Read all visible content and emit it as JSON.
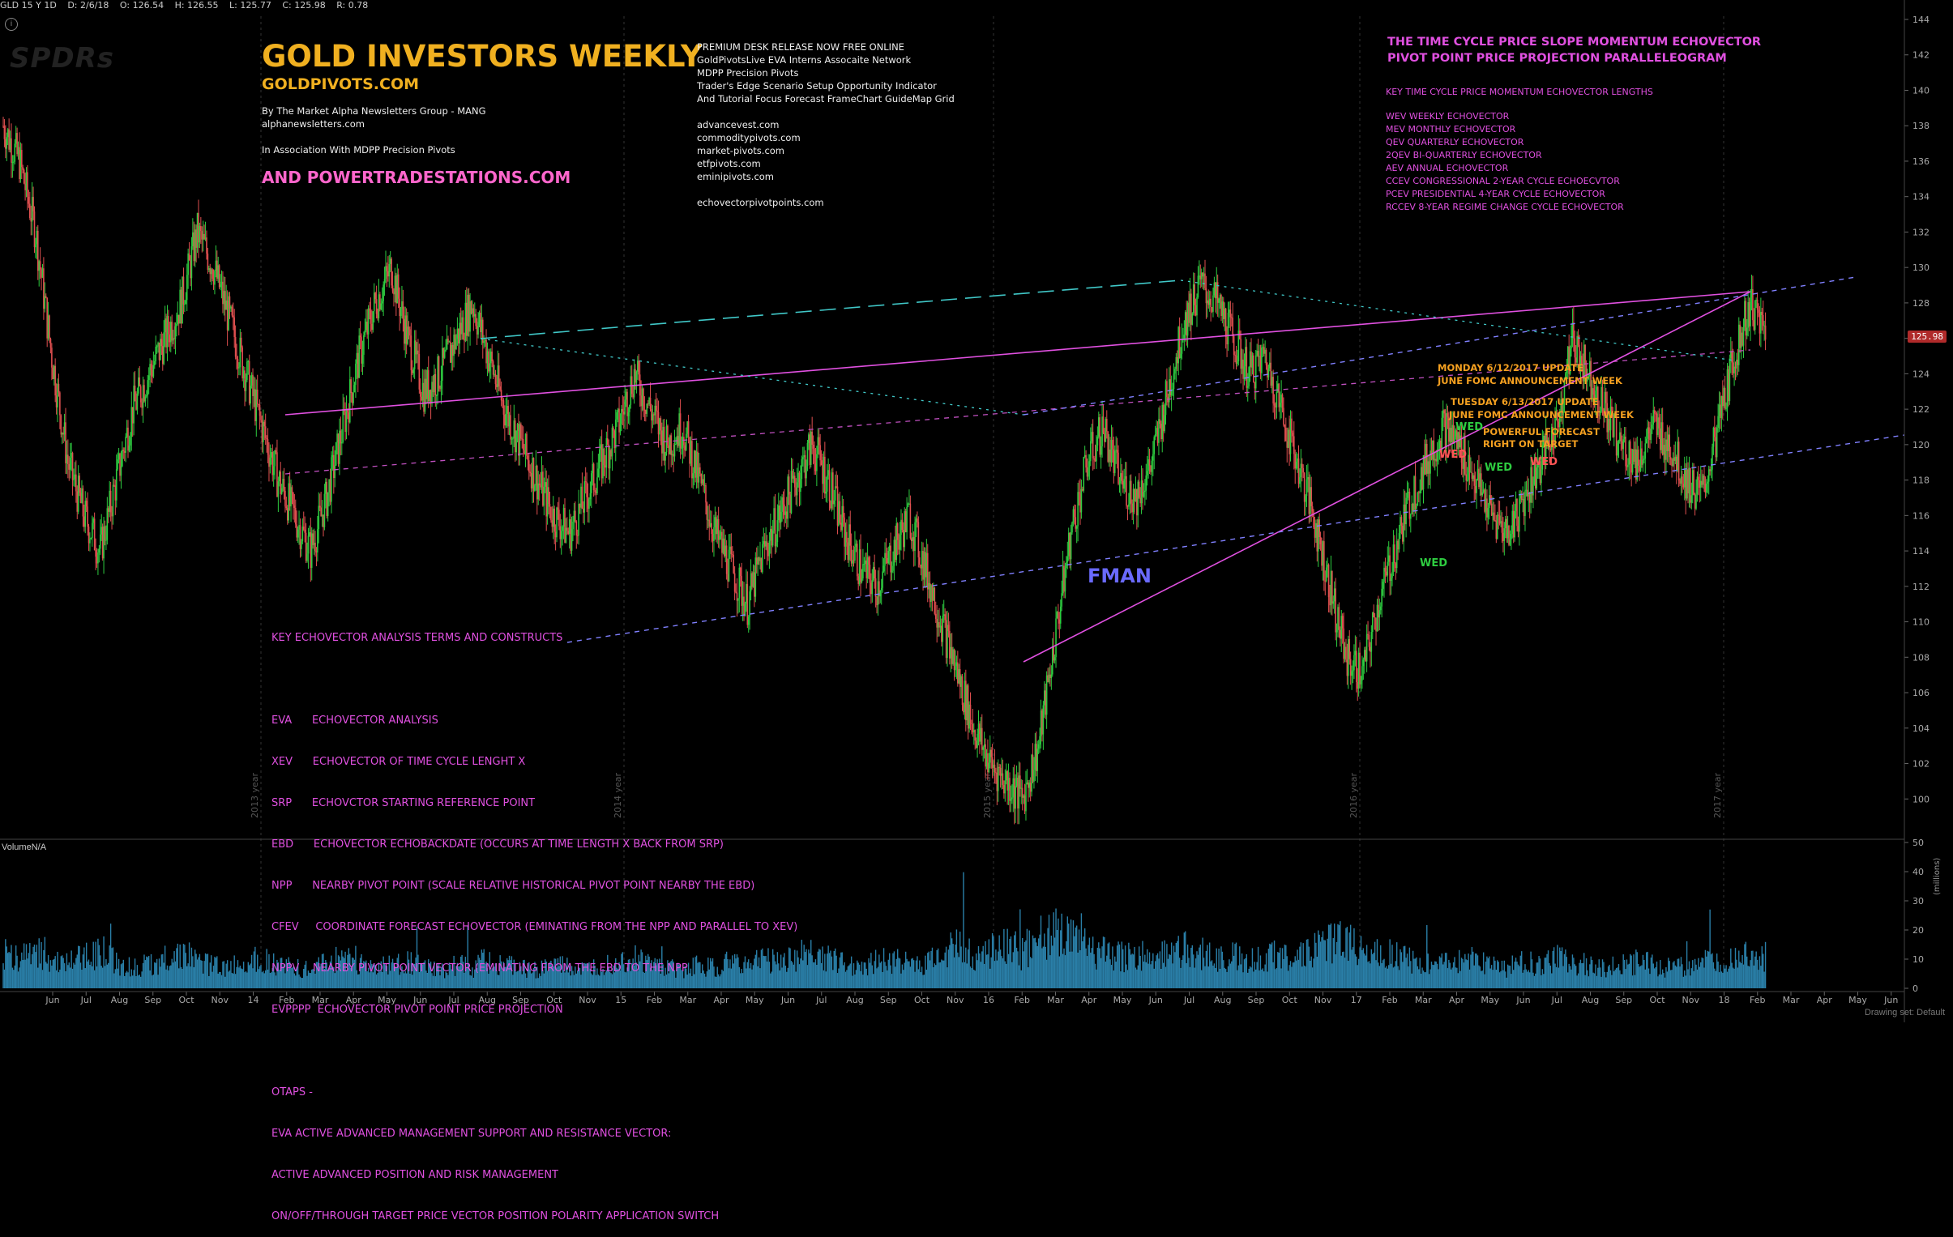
{
  "header": {
    "symbol": "GLD 15 Y 1D",
    "date": "D: 2/6/18",
    "open": "O: 126.54",
    "high": "H: 126.55",
    "low": "L: 125.77",
    "close": "C: 125.98",
    "range": "R: 0.78"
  },
  "logo_text": "SPDRs",
  "last_price": "125.98",
  "volume_label": "VolumeN/A",
  "volume_unit": "(millions)",
  "drawing_set": "Drawing set: Default",
  "title_block": {
    "title": "GOLD INVESTORS WEEKLY",
    "site": "GOLDPIVOTS.COM",
    "line1": "By The Market Alpha Newsletters Group - MANG",
    "line2": "alphanewsletters.com",
    "line3": "In Association With MDPP Precision Pivots",
    "power": "AND POWERTRADESTATIONS.COM"
  },
  "premium_block": [
    "PREMIUM DESK RELEASE NOW FREE ONLINE",
    "GoldPivotsLive EVA Interns Assocaite Network",
    "MDPP Precision Pivots",
    "Trader's Edge Scenario Setup Opportunity Indicator",
    "And Tutorial Focus Forecast FrameChart  GuideMap Grid",
    "",
    "advancevest.com",
    "commoditypivots.com",
    "market-pivots.com",
    "etfpivots.com",
    "eminipivots.com",
    "",
    "echovectorpivotpoints.com"
  ],
  "right_block": {
    "title1": "THE TIME CYCLE PRICE SLOPE MOMENTUM ECHOVECTOR",
    "title2": "PIVOT POINT PRICE PROJECTION PARALLELEOGRAM",
    "subtitle": "KEY TIME CYCLE PRICE MOMENTUM ECHOVECTOR LENGTHS",
    "items": [
      "WEV WEEKLY ECHOVECTOR",
      "MEV MONTHLY ECHOVECTOR",
      "QEV QUARTERLY ECHOVECTOR",
      "2QEV BI-QUARTERLY ECHOVECTOR",
      "AEV ANNUAL ECHOVECTOR",
      "CCEV CONGRESSIONAL 2-YEAR CYCLE ECHOECVTOR",
      "PCEV PRESIDENTIAL 4-YEAR CYCLE ECHOVECTOR",
      "RCCEV 8-YEAR REGIME CHANGE CYCLE ECHOVECTOR"
    ]
  },
  "terms_block": [
    "KEY ECHOVECTOR ANALYSIS TERMS AND CONSTRUCTS",
    "",
    "EVA      ECHOVECTOR ANALYSIS",
    "XEV      ECHOVECTOR OF TIME CYCLE LENGHT X",
    "SRP      ECHOVCTOR STARTING REFERENCE POINT",
    "EBD      ECHOVECTOR ECHOBACKDATE (OCCURS AT TIME LENGTH X BACK FROM SRP)",
    "NPP      NEARBY PIVOT POINT (SCALE RELATIVE HISTORICAL PIVOT POINT NEARBY THE EBD)",
    "CFEV     COORDINATE FORECAST ECHOVECTOR (EMINATING FROM THE NPP AND PARALLEL TO XEV)",
    "NPPV    NEARBY PIVOT POINT VECTOR (EMINATING FROM THE EBD TO THE NPP",
    "EVPPPP  ECHOVECTOR PIVOT POINT PRICE PROJECTION",
    "",
    "OTAPS -",
    "EVA ACTIVE ADVANCED MANAGEMENT SUPPORT AND RESISTANCE VECTOR:",
    "ACTIVE ADVANCED POSITION AND RISK MANAGEMENT",
    "ON/OFF/THROUGH TARGET PRICE VECTOR POSITION POLARITY APPLICATION SWITCH"
  ],
  "annotations": {
    "monday": "MONDAY 6/12/2017 UPDATE",
    "monday_fomc": "JUNE FOMC ANNOUNCEMENT WEEK",
    "tuesday": "TUESDAY 6/13/2017 UPDATE",
    "tuesday_fomc": "JUNE FOMC ANNOUNCEMENT WEEK",
    "powerful1": "POWERFUL FORECAST",
    "powerful2": "RIGHT ON TARGET",
    "wed": "WED",
    "fman": "FMAN"
  },
  "year_markers": [
    "2013 year",
    "2014 year",
    "2015 year",
    "2016 year",
    "2017 year"
  ],
  "colors": {
    "up": "#2ecc40",
    "down": "#e05050",
    "volume": "#2a7fa8",
    "magenta": "#e050e0",
    "cyan": "#40c8c8",
    "blue": "#6a6aff"
  },
  "chart_data": {
    "type": "line",
    "title": "GLD 15 Y 1D",
    "ylim": [
      98,
      144
    ],
    "y_ticks": [
      100,
      102,
      104,
      106,
      108,
      110,
      112,
      114,
      116,
      118,
      120,
      122,
      124,
      126,
      128,
      130,
      132,
      134,
      136,
      138,
      140,
      142,
      144
    ],
    "x_ticks": [
      "Jun",
      "Jul",
      "Aug",
      "Sep",
      "Oct",
      "Nov",
      "14",
      "Feb",
      "Mar",
      "Apr",
      "May",
      "Jun",
      "Jul",
      "Aug",
      "Sep",
      "Oct",
      "Nov",
      "15",
      "Feb",
      "Mar",
      "Apr",
      "May",
      "Jun",
      "Jul",
      "Aug",
      "Sep",
      "Oct",
      "Nov",
      "16",
      "Feb",
      "Mar",
      "Apr",
      "May",
      "Jun",
      "Jul",
      "Aug",
      "Sep",
      "Oct",
      "Nov",
      "17",
      "Feb",
      "Mar",
      "Apr",
      "May",
      "Jun",
      "Jul",
      "Aug",
      "Sep",
      "Oct",
      "Nov",
      "18",
      "Feb",
      "Mar",
      "Apr",
      "May",
      "Jun"
    ],
    "series": [
      {
        "name": "GLD",
        "values": [
          138,
          136,
          132,
          125,
          119,
          116,
          114,
          118,
          122,
          124,
          126,
          128,
          132,
          130,
          127,
          124,
          121,
          118,
          116,
          114,
          117,
          121,
          125,
          128,
          130,
          126,
          123,
          124,
          126,
          128,
          125,
          122,
          120,
          118,
          116,
          115,
          117,
          119,
          121,
          124,
          122,
          120,
          121,
          118,
          115,
          113,
          111,
          114,
          116,
          118,
          120,
          118,
          115,
          113,
          112,
          114,
          116,
          113,
          110,
          107,
          104,
          102,
          101,
          100,
          103,
          109,
          115,
          119,
          121,
          118,
          117,
          119,
          123,
          127,
          129,
          128,
          126,
          124,
          125,
          122,
          119,
          116,
          112,
          108,
          107,
          111,
          114,
          117,
          119,
          121,
          120,
          118,
          116,
          115,
          117,
          119,
          121,
          126,
          124,
          122,
          120,
          119,
          121,
          120,
          118,
          117,
          121,
          125,
          128,
          126
        ]
      }
    ],
    "volume_ylim": [
      0,
      50
    ],
    "volume_ticks": [
      0,
      10,
      20,
      30,
      40,
      50
    ],
    "volume": [
      12,
      10,
      14,
      9,
      8,
      11,
      13,
      9,
      7,
      8,
      10,
      12,
      9,
      8,
      7,
      9,
      10,
      8,
      7,
      6,
      9,
      11,
      8,
      7,
      8,
      9,
      7,
      6,
      8,
      7,
      9,
      8,
      7,
      6,
      8,
      7,
      6,
      8,
      9,
      10,
      8,
      7,
      6,
      8,
      7,
      9,
      8,
      10,
      9,
      11,
      12,
      10,
      9,
      8,
      9,
      10,
      8,
      9,
      12,
      14,
      11,
      13,
      15,
      12,
      18,
      20,
      16,
      14,
      12,
      11,
      10,
      9,
      13,
      14,
      12,
      10,
      11,
      9,
      10,
      12,
      11,
      13,
      15,
      16,
      14,
      12,
      11,
      10,
      9,
      8,
      9,
      10,
      8,
      7,
      9,
      8,
      10,
      9,
      8,
      7,
      8,
      9,
      8,
      7,
      8,
      9,
      8,
      10,
      12,
      11
    ]
  }
}
